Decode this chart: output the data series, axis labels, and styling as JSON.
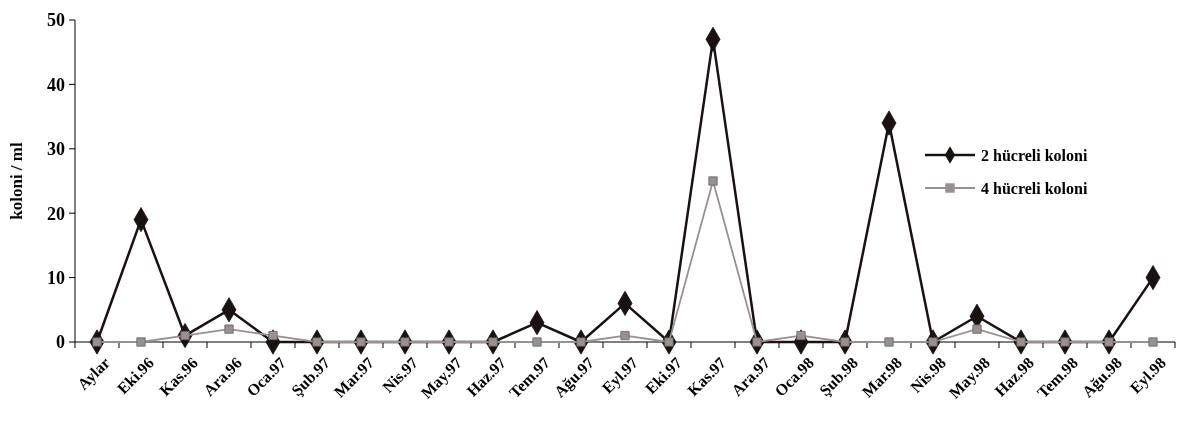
{
  "chart_data": {
    "type": "line",
    "ylabel": "koloni / ml",
    "categories": [
      "Aylar",
      "Eki.96",
      "Kas.96",
      "Ara.96",
      "Oca.97",
      "Şub.97",
      "Mar.97",
      "Nis.97",
      "May.97",
      "Haz.97",
      "Tem.97",
      "Ağu.97",
      "Eyl.97",
      "Eki.97",
      "Kas.97",
      "Ara.97",
      "Oca.98",
      "Şub.98",
      "Mar.98",
      "Nis.98",
      "May.98",
      "Haz.98",
      "Tem.98",
      "Ağu.98",
      "Eyl.98"
    ],
    "series": [
      {
        "name": "2 hücreli koloni",
        "color": "#1a1111",
        "marker": "diamond",
        "values": [
          0,
          19,
          1,
          5,
          0,
          0,
          0,
          0,
          0,
          0,
          3,
          0,
          6,
          0,
          47,
          0,
          0,
          0,
          34,
          0,
          4,
          0,
          0,
          0,
          10
        ]
      },
      {
        "name": "4 hücreli koloni",
        "color": "#9a9090",
        "marker": "square",
        "values": [
          0,
          0,
          1,
          2,
          1,
          0,
          0,
          0,
          0,
          0,
          0,
          0,
          1,
          0,
          25,
          0,
          1,
          0,
          0,
          0,
          2,
          0,
          0,
          0,
          0
        ]
      }
    ],
    "ylim": [
      0,
      50
    ],
    "yticks": [
      0,
      10,
      20,
      30,
      40,
      50
    ],
    "grid": false,
    "legend": "top right",
    "line_style": "solid"
  }
}
